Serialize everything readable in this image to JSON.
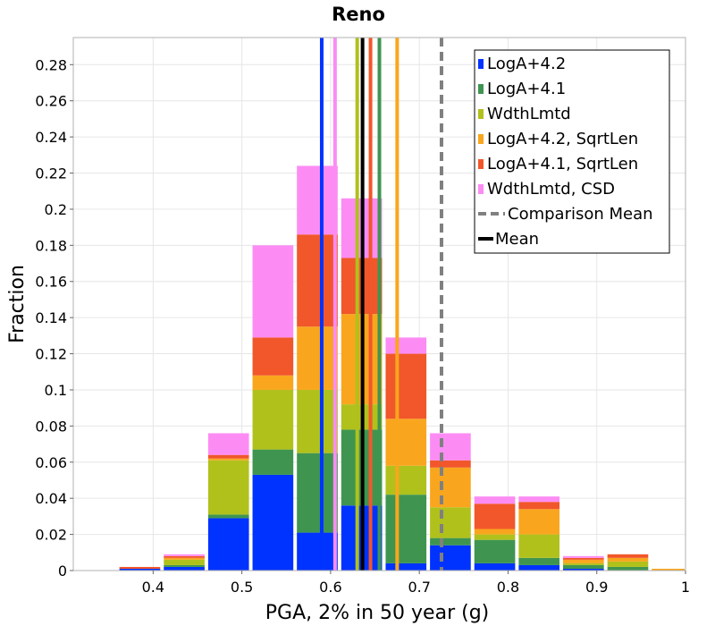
{
  "chart_data": {
    "type": "bar",
    "stacked": true,
    "title": "Reno",
    "xlabel": "PGA, 2% in 50 year (g)",
    "ylabel": "Fraction",
    "xlim": [
      0.31,
      1.0
    ],
    "ylim": [
      0,
      0.295
    ],
    "grid": true,
    "legend_position": "top-right",
    "x_ticks": [
      0.4,
      0.5,
      0.6,
      0.7,
      0.8,
      0.9,
      1.0
    ],
    "x_tick_labels": [
      "0.4",
      "0.5",
      "0.6",
      "0.7",
      "0.8",
      "0.9",
      "1"
    ],
    "y_ticks": [
      0,
      0.02,
      0.04,
      0.06,
      0.08,
      0.1,
      0.12,
      0.14,
      0.16,
      0.18,
      0.2,
      0.22,
      0.24,
      0.26,
      0.28
    ],
    "y_tick_labels": [
      "0",
      "0.02",
      "0.04",
      "0.06",
      "0.08",
      "0.1",
      "0.12",
      "0.14",
      "0.16",
      "0.18",
      "0.2",
      "0.22",
      "0.24",
      "0.26",
      "0.28"
    ],
    "bin_edges": [
      0.31,
      0.36,
      0.41,
      0.46,
      0.51,
      0.56,
      0.61,
      0.66,
      0.71,
      0.76,
      0.81,
      0.86,
      0.91,
      0.96,
      1.01
    ],
    "series": [
      {
        "name": "LogA+4.2",
        "color": "#0033ff",
        "values": [
          0,
          0.001,
          0.002,
          0.029,
          0.053,
          0.021,
          0.036,
          0.004,
          0.014,
          0.004,
          0.003,
          0.001,
          0,
          0
        ]
      },
      {
        "name": "LogA+4.1",
        "color": "#3f9550",
        "values": [
          0,
          0,
          0.001,
          0.002,
          0.014,
          0.044,
          0.042,
          0.038,
          0.004,
          0.013,
          0.004,
          0.002,
          0.002,
          0
        ]
      },
      {
        "name": "WdthLmtd",
        "color": "#b0c11c",
        "values": [
          0,
          0,
          0.003,
          0.03,
          0.033,
          0.035,
          0.014,
          0.016,
          0.017,
          0.003,
          0.013,
          0.001,
          0.003,
          0
        ]
      },
      {
        "name": "LogA+4.2, SqrtLen",
        "color": "#f9a61e",
        "values": [
          0,
          0,
          0.001,
          0.001,
          0.008,
          0.035,
          0.05,
          0.026,
          0.022,
          0.003,
          0.014,
          0.002,
          0.002,
          0.001
        ]
      },
      {
        "name": "LogA+4.1, SqrtLen",
        "color": "#f1572a",
        "values": [
          0,
          0.001,
          0.001,
          0.002,
          0.021,
          0.051,
          0.031,
          0.036,
          0.004,
          0.014,
          0.004,
          0.001,
          0.002,
          0
        ]
      },
      {
        "name": "WdthLmtd, CSD",
        "color": "#fc8cf4",
        "values": [
          0,
          0,
          0.001,
          0.012,
          0.051,
          0.038,
          0.033,
          0.009,
          0.015,
          0.004,
          0.003,
          0.001,
          0,
          0
        ]
      }
    ],
    "vertical_lines": [
      {
        "series": "LogA+4.2",
        "x": 0.59,
        "style": "solid",
        "color": "#0033ff"
      },
      {
        "series": "LogA+4.1",
        "x": 0.655,
        "style": "solid",
        "color": "#3f9550"
      },
      {
        "series": "WdthLmtd",
        "x": 0.63,
        "style": "solid",
        "color": "#b0c11c"
      },
      {
        "series": "LogA+4.2, SqrtLen",
        "x": 0.675,
        "style": "solid",
        "color": "#f9a61e"
      },
      {
        "series": "LogA+4.1, SqrtLen",
        "x": 0.645,
        "style": "solid",
        "color": "#f1572a"
      },
      {
        "series": "WdthLmtd, CSD",
        "x": 0.605,
        "style": "solid",
        "color": "#fc8cf4"
      },
      {
        "series": "Comparison Mean",
        "x": 0.725,
        "style": "dashed",
        "color": "#808080"
      },
      {
        "series": "Mean",
        "x": 0.636,
        "style": "solid",
        "color": "#000000"
      }
    ],
    "legend": [
      {
        "label": "LogA+4.2",
        "kind": "box",
        "color": "#0033ff"
      },
      {
        "label": "LogA+4.1",
        "kind": "box",
        "color": "#3f9550"
      },
      {
        "label": "WdthLmtd",
        "kind": "box",
        "color": "#b0c11c"
      },
      {
        "label": "LogA+4.2, SqrtLen",
        "kind": "box",
        "color": "#f9a61e"
      },
      {
        "label": "LogA+4.1, SqrtLen",
        "kind": "box",
        "color": "#f1572a"
      },
      {
        "label": "WdthLmtd, CSD",
        "kind": "box",
        "color": "#fc8cf4"
      },
      {
        "label": "Comparison Mean",
        "kind": "dashed",
        "color": "#808080"
      },
      {
        "label": "Mean",
        "kind": "line",
        "color": "#000000"
      }
    ]
  }
}
